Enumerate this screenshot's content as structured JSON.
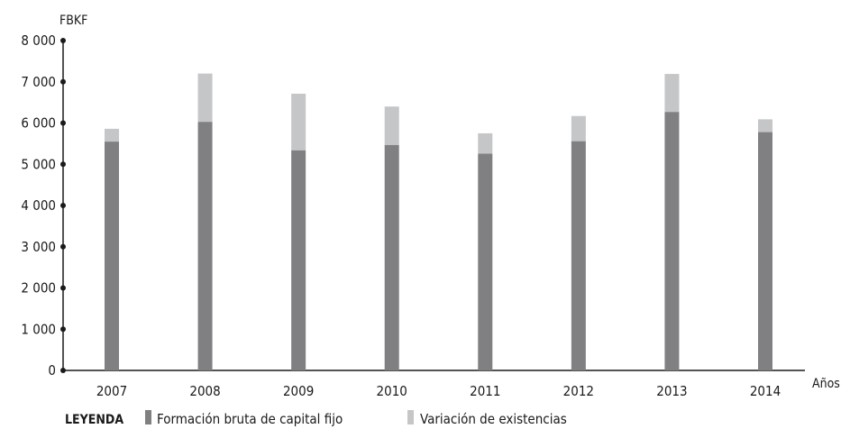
{
  "chart_data": {
    "type": "bar",
    "stacked": true,
    "categories": [
      "2007",
      "2008",
      "2009",
      "2010",
      "2011",
      "2012",
      "2013",
      "2014"
    ],
    "series": [
      {
        "name": "Formación bruta de capital fijo",
        "values": [
          5550,
          6030,
          5340,
          5470,
          5260,
          5560,
          6270,
          5780
        ],
        "color": "#808083"
      },
      {
        "name": "Variación de existencias",
        "values": [
          310,
          1170,
          1370,
          930,
          490,
          610,
          920,
          310
        ],
        "color": "#c5c6c8"
      }
    ],
    "ylabel": "FBKF",
    "xlabel": "Años",
    "ylim": [
      0,
      8000
    ],
    "yticks": [
      0,
      1000,
      2000,
      3000,
      4000,
      5000,
      6000,
      7000,
      8000
    ],
    "ytick_labels": [
      "0",
      "1 000",
      "2 000",
      "3 000",
      "4 000",
      "5 000",
      "6 000",
      "7 000",
      "8 000"
    ],
    "grid": false,
    "legend": {
      "title": "LEYENDA",
      "placement": "bottom-left"
    }
  }
}
